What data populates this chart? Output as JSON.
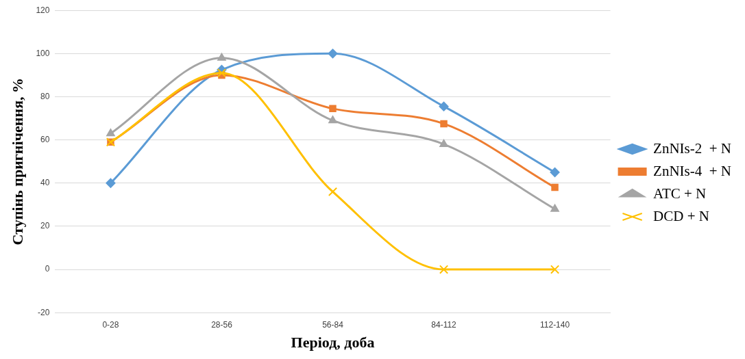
{
  "chart_data": {
    "type": "line",
    "xlabel": "Період, доба",
    "ylabel": "Ступінь пригнічення, %",
    "categories": [
      "0-28",
      "28-56",
      "56-84",
      "84-112",
      "112-140"
    ],
    "series": [
      {
        "name": "ZnNIs-2  + N",
        "color": "#5b9bd5",
        "marker": "diamond",
        "values": [
          40,
          92.5,
          100,
          75.5,
          45
        ]
      },
      {
        "name": "ZnNIs-4  + N",
        "color": "#ed7d31",
        "marker": "square",
        "values": [
          59,
          90,
          74.5,
          67.5,
          38
        ]
      },
      {
        "name": "ATC + N",
        "color": "#a5a5a5",
        "marker": "triangle",
        "values": [
          63,
          98,
          69,
          58,
          28
        ]
      },
      {
        "name": "DCD + N",
        "color": "#ffc000",
        "marker": "cross",
        "values": [
          59,
          91,
          36,
          0,
          0
        ]
      }
    ],
    "ylim": [
      -20,
      120
    ],
    "yticks": [
      -20,
      0,
      20,
      40,
      60,
      80,
      100,
      120
    ],
    "grid": "y",
    "legend": "right"
  }
}
